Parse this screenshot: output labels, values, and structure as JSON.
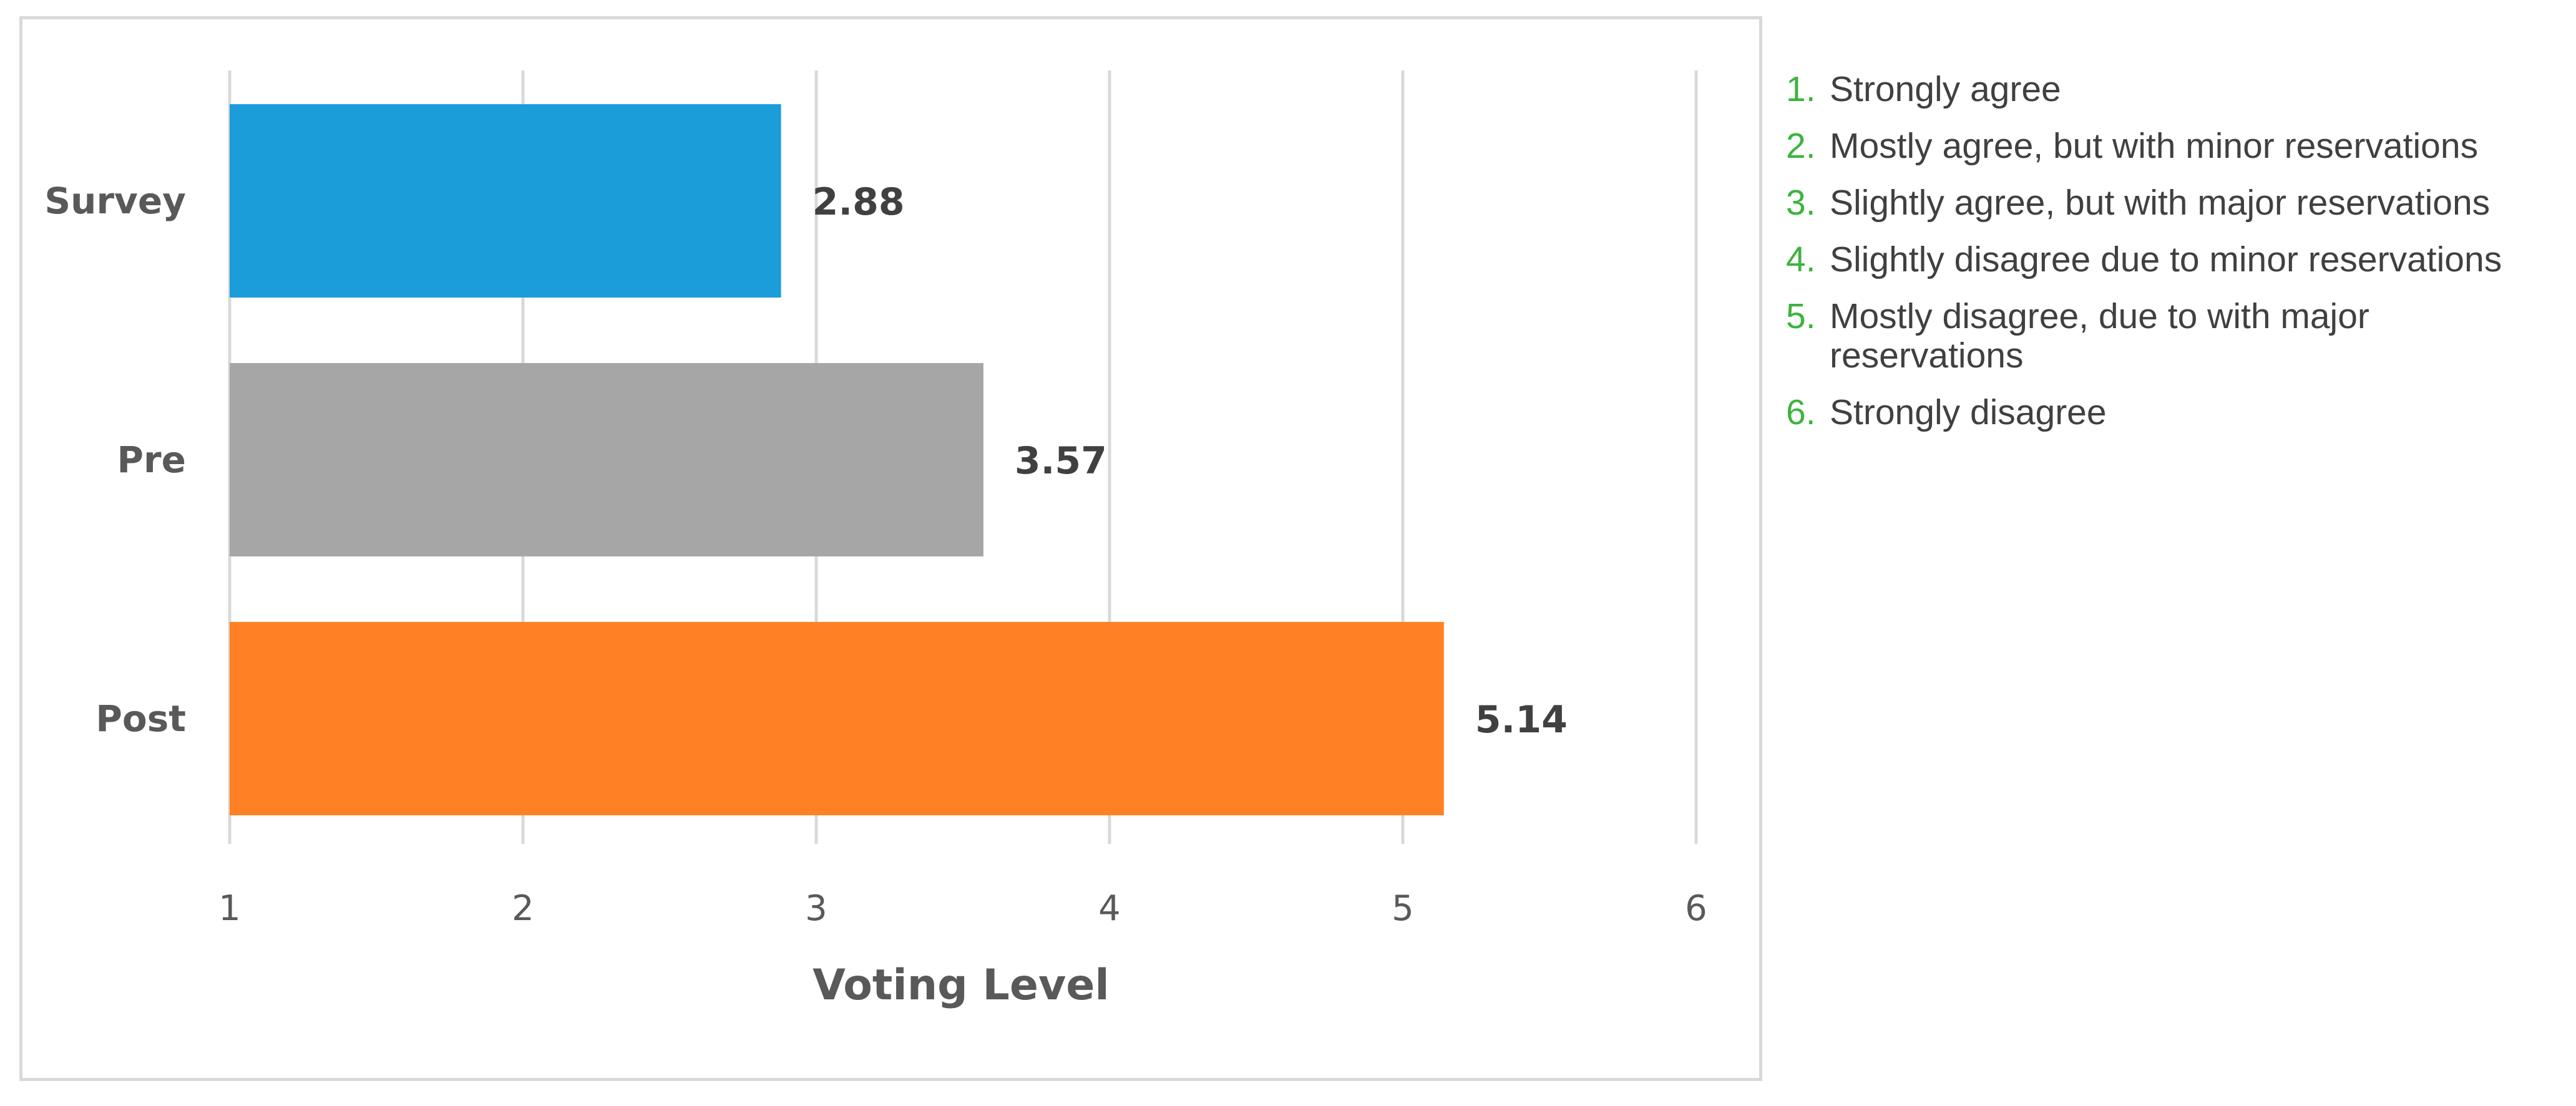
{
  "chart_data": {
    "type": "bar",
    "orientation": "horizontal",
    "categories": [
      "Survey",
      "Pre",
      "Post"
    ],
    "values": [
      2.88,
      3.57,
      5.14
    ],
    "data_labels": [
      "2.88",
      "3.57",
      "5.14"
    ],
    "colors": [
      "#1a9dd9",
      "#a6a6a6",
      "#ff8124"
    ],
    "xlabel": "Voting Level",
    "xlim": [
      1,
      6
    ],
    "x_ticks": [
      1,
      2,
      3,
      4,
      5,
      6
    ],
    "x_tick_labels": [
      "1",
      "2",
      "3",
      "4",
      "5",
      "6"
    ],
    "grid": "vertical"
  },
  "scale_legend": {
    "number_color": "#3cb43c",
    "items": [
      {
        "number": "1.",
        "text": "Strongly agree"
      },
      {
        "number": "2.",
        "text": "Mostly agree, but with minor reservations"
      },
      {
        "number": "3.",
        "text": "Slightly agree, but with major reservations"
      },
      {
        "number": "4.",
        "text": "Slightly disagree due to minor reservations"
      },
      {
        "number": "5.",
        "text": "Mostly disagree, due to with major reservations"
      },
      {
        "number": "6.",
        "text": "Strongly disagree"
      }
    ]
  }
}
